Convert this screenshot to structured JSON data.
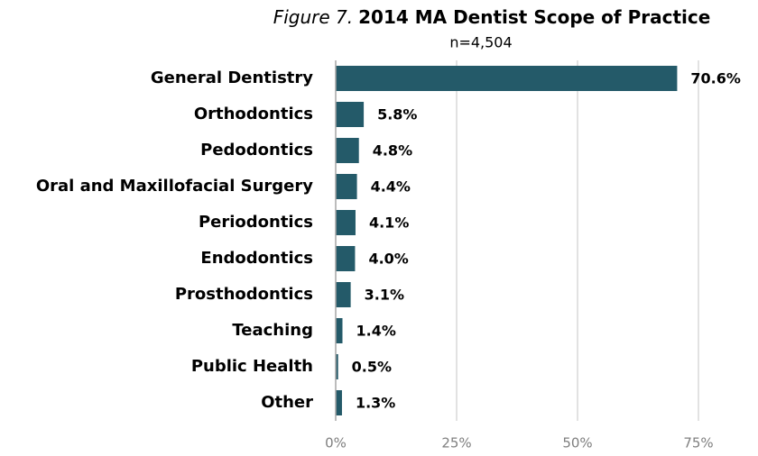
{
  "chart_data": {
    "type": "bar",
    "orientation": "horizontal",
    "figure_label": "Figure 7.",
    "title": "2014 MA Dentist Scope of Practice",
    "subtitle": "n=4,504",
    "categories": [
      "General Dentistry",
      "Orthodontics",
      "Pedodontics",
      "Oral and Maxillofacial Surgery",
      "Periodontics",
      "Endodontics",
      "Prosthodontics",
      "Teaching",
      "Public Health",
      "Other"
    ],
    "values": [
      70.6,
      5.8,
      4.8,
      4.4,
      4.1,
      4.0,
      3.1,
      1.4,
      0.5,
      1.3
    ],
    "value_labels": [
      "70.6%",
      "5.8%",
      "4.8%",
      "4.4%",
      "4.1%",
      "4.0%",
      "3.1%",
      "1.4%",
      "0.5%",
      "1.3%"
    ],
    "color": "#245a69",
    "xlim": [
      0,
      75
    ],
    "xticks": [
      {
        "value": 0,
        "label": "0%"
      },
      {
        "value": 25,
        "label": "25%"
      },
      {
        "value": 50,
        "label": "50%"
      },
      {
        "value": 75,
        "label": "75%"
      }
    ],
    "grid": true
  }
}
